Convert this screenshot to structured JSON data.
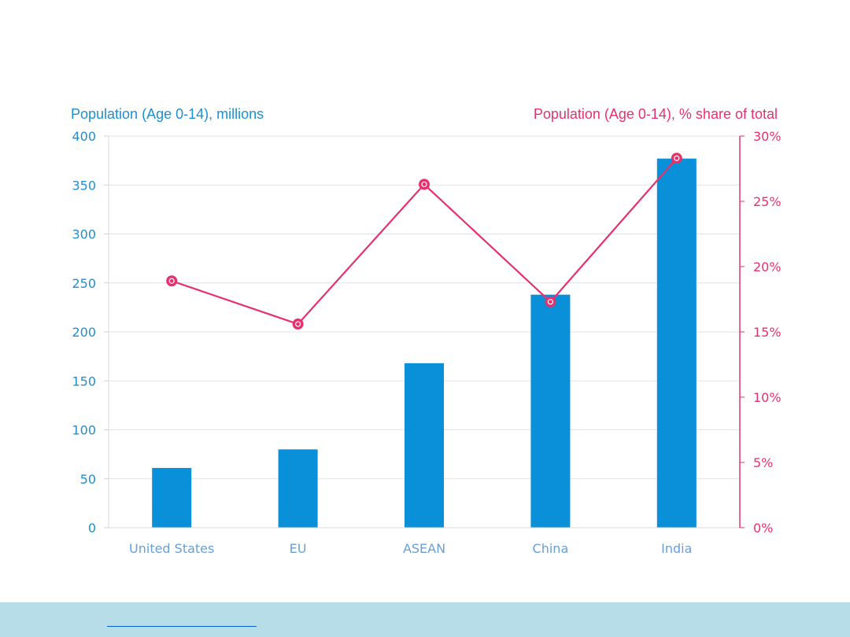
{
  "colors": {
    "bar": "#0a8fd9",
    "line": "#e6316e",
    "left_axis_text": "#1f8fd0",
    "right_axis_text": "#e6316e",
    "category_text": "#6a9fd6",
    "grid": "#e3e3e3",
    "footer": "#b7dde8"
  },
  "chart_data": {
    "type": "bar",
    "title": "",
    "xlabel": "",
    "categories": [
      "United States",
      "EU",
      "ASEAN",
      "China",
      "India"
    ],
    "y_left_label": "Population  (Age 0-14),  millions",
    "y_right_label": "Population  (Age 0-14),  % share of total",
    "ylim_left": [
      0,
      400
    ],
    "ylim_right": [
      0,
      30
    ],
    "left_ticks": [
      "0",
      "50",
      "100",
      "150",
      "200",
      "250",
      "300",
      "350",
      "400"
    ],
    "right_ticks": [
      "0%",
      "5%",
      "10%",
      "15%",
      "20%",
      "25%",
      "30%"
    ],
    "grid": true,
    "series": [
      {
        "type": "bar",
        "axis": "left",
        "values": [
          61,
          80,
          168,
          238,
          377
        ]
      },
      {
        "type": "line",
        "axis": "right",
        "marker": "circle",
        "values": [
          18.9,
          15.6,
          26.3,
          17.3,
          28.3
        ]
      }
    ]
  }
}
